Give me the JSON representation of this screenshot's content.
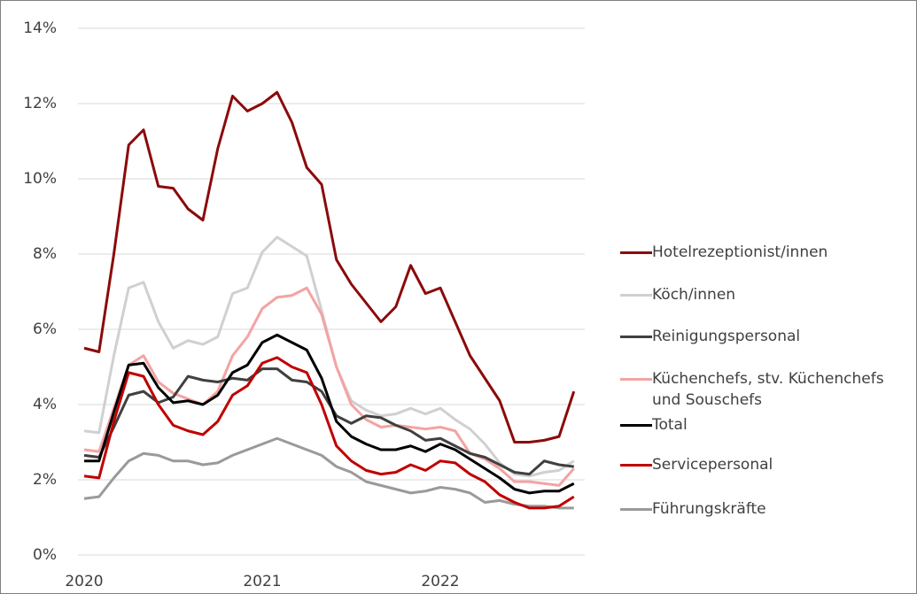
{
  "chart_data": {
    "type": "line",
    "categories": [
      "2020",
      null,
      null,
      null,
      null,
      null,
      null,
      null,
      null,
      null,
      null,
      null,
      "2021",
      null,
      null,
      null,
      null,
      null,
      null,
      null,
      null,
      null,
      null,
      null,
      "2022",
      null,
      null,
      null,
      null,
      null,
      null,
      null,
      null,
      null
    ],
    "ylim": [
      0,
      14
    ],
    "yticks": [
      {
        "value": 0,
        "label": "0%"
      },
      {
        "value": 2,
        "label": "2%"
      },
      {
        "value": 4,
        "label": "4%"
      },
      {
        "value": 6,
        "label": "6%"
      },
      {
        "value": 8,
        "label": "8%"
      },
      {
        "value": 10,
        "label": "10%"
      },
      {
        "value": 12,
        "label": "12%"
      },
      {
        "value": 14,
        "label": "14%"
      }
    ],
    "grid": true,
    "legend": "right",
    "series": [
      {
        "name": "Hotelrezeptionist/innen",
        "color": "#8b0a0a",
        "values": [
          5.5,
          5.4,
          8.0,
          10.9,
          11.3,
          9.8,
          9.75,
          9.2,
          8.9,
          10.8,
          12.2,
          11.8,
          12.0,
          12.3,
          11.5,
          10.3,
          9.85,
          7.85,
          7.2,
          6.7,
          6.2,
          6.6,
          7.7,
          6.95,
          7.1,
          6.2,
          5.3,
          4.7,
          4.1,
          3.0,
          3.0,
          3.05,
          3.15,
          4.35
        ]
      },
      {
        "name": "Köch/innen",
        "color": "#d0d0d0",
        "values": [
          3.3,
          3.25,
          5.3,
          7.1,
          7.25,
          6.2,
          5.5,
          5.7,
          5.6,
          5.8,
          6.95,
          7.1,
          8.05,
          8.45,
          8.2,
          7.95,
          6.5,
          5.0,
          4.1,
          3.85,
          3.7,
          3.75,
          3.9,
          3.75,
          3.9,
          3.6,
          3.35,
          2.95,
          2.45,
          2.15,
          2.1,
          2.2,
          2.25,
          2.5
        ]
      },
      {
        "name": "Reinigungspersonal",
        "color": "#404040",
        "values": [
          2.65,
          2.6,
          3.4,
          4.25,
          4.35,
          4.05,
          4.2,
          4.75,
          4.65,
          4.6,
          4.7,
          4.65,
          4.95,
          4.95,
          4.65,
          4.6,
          4.35,
          3.7,
          3.5,
          3.7,
          3.65,
          3.45,
          3.3,
          3.05,
          3.1,
          2.9,
          2.7,
          2.6,
          2.4,
          2.2,
          2.15,
          2.5,
          2.4,
          2.35
        ]
      },
      {
        "name": "Küchenchefs, stv. Küchenchefs und Souschefs",
        "color": "#f4a3a3",
        "values": [
          2.8,
          2.75,
          3.9,
          5.05,
          5.3,
          4.6,
          4.3,
          4.15,
          4.0,
          4.35,
          5.3,
          5.8,
          6.55,
          6.85,
          6.9,
          7.1,
          6.4,
          5.0,
          4.0,
          3.6,
          3.4,
          3.45,
          3.4,
          3.35,
          3.4,
          3.3,
          2.7,
          2.55,
          2.3,
          1.95,
          1.95,
          1.9,
          1.85,
          2.3
        ]
      },
      {
        "name": "Total",
        "color": "#000000",
        "values": [
          2.5,
          2.5,
          3.8,
          5.05,
          5.1,
          4.45,
          4.05,
          4.1,
          4.0,
          4.25,
          4.85,
          5.05,
          5.65,
          5.85,
          5.65,
          5.45,
          4.7,
          3.55,
          3.15,
          2.95,
          2.8,
          2.8,
          2.9,
          2.75,
          2.95,
          2.8,
          2.55,
          2.3,
          2.05,
          1.75,
          1.65,
          1.7,
          1.7,
          1.9
        ]
      },
      {
        "name": "Servicepersonal",
        "color": "#c00000",
        "values": [
          2.1,
          2.05,
          3.55,
          4.85,
          4.75,
          4.0,
          3.45,
          3.3,
          3.2,
          3.55,
          4.25,
          4.5,
          5.1,
          5.25,
          5.0,
          4.85,
          4.0,
          2.9,
          2.5,
          2.25,
          2.15,
          2.2,
          2.4,
          2.25,
          2.5,
          2.45,
          2.15,
          1.95,
          1.6,
          1.4,
          1.25,
          1.25,
          1.3,
          1.55
        ]
      },
      {
        "name": "Führungskräfte",
        "color": "#9a9a9a",
        "values": [
          1.5,
          1.55,
          2.05,
          2.5,
          2.7,
          2.65,
          2.5,
          2.5,
          2.4,
          2.45,
          2.65,
          2.8,
          2.95,
          3.1,
          2.95,
          2.8,
          2.65,
          2.35,
          2.2,
          1.95,
          1.85,
          1.75,
          1.65,
          1.7,
          1.8,
          1.75,
          1.65,
          1.4,
          1.45,
          1.35,
          1.3,
          1.3,
          1.25,
          1.25
        ]
      }
    ]
  }
}
